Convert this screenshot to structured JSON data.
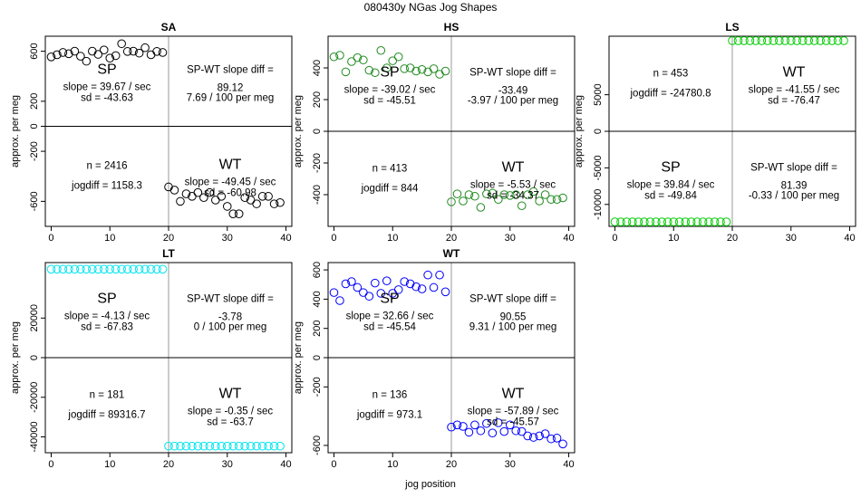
{
  "figure": {
    "title": "080430y    NGas Jog Shapes",
    "xlabel": "jog position"
  },
  "chart_data": [
    {
      "type": "scatter",
      "title": "SA",
      "ylabel": "approx. per meg",
      "xlim": [
        -1,
        41
      ],
      "ylim": [
        -800,
        720
      ],
      "xticks": [
        0,
        10,
        20,
        30,
        40
      ],
      "yticks": [
        -600,
        -200,
        0,
        200,
        600
      ],
      "color": "#000000",
      "points_sp": [
        [
          0,
          555
        ],
        [
          1,
          572
        ],
        [
          2,
          590
        ],
        [
          3,
          580
        ],
        [
          4,
          600
        ],
        [
          5,
          560
        ],
        [
          6,
          520
        ],
        [
          7,
          600
        ],
        [
          8,
          575
        ],
        [
          9,
          610
        ],
        [
          10,
          545
        ],
        [
          11,
          565
        ],
        [
          12,
          660
        ],
        [
          13,
          598
        ],
        [
          14,
          600
        ],
        [
          15,
          585
        ],
        [
          16,
          628
        ],
        [
          17,
          572
        ],
        [
          18,
          598
        ],
        [
          19,
          590
        ]
      ],
      "points_wt": [
        [
          20,
          -485
        ],
        [
          21,
          -510
        ],
        [
          22,
          -600
        ],
        [
          23,
          -540
        ],
        [
          24,
          -560
        ],
        [
          25,
          -530
        ],
        [
          26,
          -570
        ],
        [
          27,
          -530
        ],
        [
          28,
          -590
        ],
        [
          29,
          -560
        ],
        [
          30,
          -640
        ],
        [
          31,
          -700
        ],
        [
          32,
          -700
        ],
        [
          33,
          -570
        ],
        [
          34,
          -590
        ],
        [
          35,
          -620
        ],
        [
          36,
          -560
        ],
        [
          37,
          -560
        ],
        [
          38,
          -620
        ],
        [
          39,
          -610
        ]
      ],
      "sp_label": "SP",
      "sp_slope": "slope = 39.67 / sec",
      "sp_sd": "sd = -43.63",
      "diff_label": "SP-WT slope diff =",
      "diff_value": "89.12",
      "diff_per": "7.69 / 100 per meg",
      "n": "n = 2416",
      "jogdiff": "jogdiff = 1158.3",
      "wt_label": "WT",
      "wt_slope": "slope = -49.45 / sec",
      "wt_sd": "sd = -60.98"
    },
    {
      "type": "scatter",
      "title": "HS",
      "ylabel": "approx. per meg",
      "xlim": [
        -1,
        41
      ],
      "ylim": [
        -600,
        600
      ],
      "xticks": [
        0,
        10,
        20,
        30,
        40
      ],
      "yticks": [
        -400,
        -200,
        0,
        200,
        400
      ],
      "color": "#228b22",
      "points_sp": [
        [
          0,
          470
        ],
        [
          1,
          480
        ],
        [
          2,
          375
        ],
        [
          3,
          440
        ],
        [
          4,
          465
        ],
        [
          5,
          450
        ],
        [
          6,
          385
        ],
        [
          7,
          370
        ],
        [
          8,
          510
        ],
        [
          9,
          400
        ],
        [
          10,
          445
        ],
        [
          11,
          470
        ],
        [
          12,
          395
        ],
        [
          13,
          400
        ],
        [
          14,
          380
        ],
        [
          15,
          390
        ],
        [
          16,
          375
        ],
        [
          17,
          395
        ],
        [
          18,
          360
        ],
        [
          19,
          380
        ]
      ],
      "points_wt": [
        [
          20,
          -445
        ],
        [
          21,
          -395
        ],
        [
          22,
          -440
        ],
        [
          23,
          -400
        ],
        [
          24,
          -410
        ],
        [
          25,
          -480
        ],
        [
          26,
          -395
        ],
        [
          27,
          -390
        ],
        [
          28,
          -430
        ],
        [
          29,
          -400
        ],
        [
          30,
          -405
        ],
        [
          31,
          -400
        ],
        [
          32,
          -470
        ],
        [
          33,
          -400
        ],
        [
          34,
          -380
        ],
        [
          35,
          -440
        ],
        [
          36,
          -400
        ],
        [
          37,
          -430
        ],
        [
          38,
          -430
        ],
        [
          39,
          -420
        ]
      ],
      "sp_label": "SP",
      "sp_slope": "slope = -39.02 / sec",
      "sp_sd": "sd = -45.51",
      "diff_label": "SP-WT slope diff =",
      "diff_value": "-33.49",
      "diff_per": "-3.97 / 100 per meg",
      "n": "n = 413",
      "jogdiff": "jogdiff = 844",
      "wt_label": "WT",
      "wt_slope": "slope = -5.53 / sec",
      "wt_sd": "sd = -34.37"
    },
    {
      "type": "scatter",
      "title": "LS",
      "ylabel": "approx. per meg",
      "xlim": [
        -1,
        41
      ],
      "ylim": [
        -13000,
        13000
      ],
      "xticks": [
        0,
        10,
        20,
        30,
        40
      ],
      "yticks": [
        -10000,
        -5000,
        0,
        5000
      ],
      "color": "#00cc00",
      "points_sp": [
        [
          0,
          -12390
        ],
        [
          1,
          -12390
        ],
        [
          2,
          -12390
        ],
        [
          3,
          -12390
        ],
        [
          4,
          -12390
        ],
        [
          5,
          -12390
        ],
        [
          6,
          -12390
        ],
        [
          7,
          -12390
        ],
        [
          8,
          -12390
        ],
        [
          9,
          -12390
        ],
        [
          10,
          -12390
        ],
        [
          11,
          -12390
        ],
        [
          12,
          -12390
        ],
        [
          13,
          -12390
        ],
        [
          14,
          -12390
        ],
        [
          15,
          -12390
        ],
        [
          16,
          -12390
        ],
        [
          17,
          -12390
        ],
        [
          18,
          -12390
        ],
        [
          19,
          -12390
        ]
      ],
      "points_wt": [
        [
          20,
          12390
        ],
        [
          21,
          12390
        ],
        [
          22,
          12390
        ],
        [
          23,
          12390
        ],
        [
          24,
          12390
        ],
        [
          25,
          12390
        ],
        [
          26,
          12390
        ],
        [
          27,
          12390
        ],
        [
          28,
          12390
        ],
        [
          29,
          12390
        ],
        [
          30,
          12390
        ],
        [
          31,
          12390
        ],
        [
          32,
          12390
        ],
        [
          33,
          12390
        ],
        [
          34,
          12390
        ],
        [
          35,
          12390
        ],
        [
          36,
          12390
        ],
        [
          37,
          12390
        ],
        [
          38,
          12390
        ],
        [
          39,
          12390
        ]
      ],
      "sp_label": "SP",
      "sp_slope": "slope = 39.84 / sec",
      "sp_sd": "sd = -49.84",
      "diff_label": "SP-WT slope diff =",
      "diff_value": "81.39",
      "diff_per": "-0.33 / 100 per meg",
      "n": "n = 453",
      "jogdiff": "jogdiff = -24780.8",
      "wt_label": "WT",
      "wt_slope": "slope = -41.55 / sec",
      "wt_sd": "sd = -76.47",
      "layout": "flipped"
    },
    {
      "type": "scatter",
      "title": "LT",
      "ylabel": "approx. per meg",
      "xlim": [
        -1,
        41
      ],
      "ylim": [
        -48000,
        48000
      ],
      "xticks": [
        0,
        10,
        20,
        30,
        40
      ],
      "yticks": [
        -40000,
        -20000,
        0,
        20000
      ],
      "color": "#00e5ee",
      "points_sp": [
        [
          0,
          44660
        ],
        [
          1,
          44660
        ],
        [
          2,
          44660
        ],
        [
          3,
          44660
        ],
        [
          4,
          44660
        ],
        [
          5,
          44660
        ],
        [
          6,
          44660
        ],
        [
          7,
          44660
        ],
        [
          8,
          44660
        ],
        [
          9,
          44660
        ],
        [
          10,
          44660
        ],
        [
          11,
          44660
        ],
        [
          12,
          44660
        ],
        [
          13,
          44660
        ],
        [
          14,
          44660
        ],
        [
          15,
          44660
        ],
        [
          16,
          44660
        ],
        [
          17,
          44660
        ],
        [
          18,
          44660
        ],
        [
          19,
          44660
        ]
      ],
      "points_wt": [
        [
          20,
          -44660
        ],
        [
          21,
          -44660
        ],
        [
          22,
          -44660
        ],
        [
          23,
          -44660
        ],
        [
          24,
          -44660
        ],
        [
          25,
          -44660
        ],
        [
          26,
          -44660
        ],
        [
          27,
          -44660
        ],
        [
          28,
          -44660
        ],
        [
          29,
          -44660
        ],
        [
          30,
          -44660
        ],
        [
          31,
          -44660
        ],
        [
          32,
          -44660
        ],
        [
          33,
          -44660
        ],
        [
          34,
          -44660
        ],
        [
          35,
          -44660
        ],
        [
          36,
          -44660
        ],
        [
          37,
          -44660
        ],
        [
          38,
          -44660
        ],
        [
          39,
          -44660
        ]
      ],
      "sp_label": "SP",
      "sp_slope": "slope = -4.13 / sec",
      "sp_sd": "sd = -67.83",
      "diff_label": "SP-WT slope diff =",
      "diff_value": "-3.78",
      "diff_per": "0 / 100 per meg",
      "n": "n = 181",
      "jogdiff": "jogdiff = 89316.7",
      "wt_label": "WT",
      "wt_slope": "slope = -0.35 / sec",
      "wt_sd": "sd = -63.7"
    },
    {
      "type": "scatter",
      "title": "WT",
      "ylabel": "approx. per meg",
      "xlim": [
        -1,
        41
      ],
      "ylim": [
        -650,
        650
      ],
      "xticks": [
        0,
        10,
        20,
        30,
        40
      ],
      "yticks": [
        -600,
        -200,
        0,
        200,
        400,
        600
      ],
      "color": "#0000ff",
      "points_sp": [
        [
          0,
          445
        ],
        [
          1,
          390
        ],
        [
          2,
          505
        ],
        [
          3,
          520
        ],
        [
          4,
          480
        ],
        [
          5,
          445
        ],
        [
          6,
          420
        ],
        [
          7,
          510
        ],
        [
          8,
          440
        ],
        [
          9,
          525
        ],
        [
          10,
          440
        ],
        [
          11,
          465
        ],
        [
          12,
          520
        ],
        [
          13,
          505
        ],
        [
          14,
          485
        ],
        [
          15,
          470
        ],
        [
          16,
          565
        ],
        [
          17,
          480
        ],
        [
          18,
          565
        ],
        [
          19,
          450
        ]
      ],
      "points_wt": [
        [
          20,
          -475
        ],
        [
          21,
          -460
        ],
        [
          22,
          -470
        ],
        [
          23,
          -510
        ],
        [
          24,
          -460
        ],
        [
          25,
          -500
        ],
        [
          26,
          -450
        ],
        [
          27,
          -515
        ],
        [
          28,
          -445
        ],
        [
          29,
          -505
        ],
        [
          30,
          -460
        ],
        [
          31,
          -500
        ],
        [
          32,
          -505
        ],
        [
          33,
          -535
        ],
        [
          34,
          -545
        ],
        [
          35,
          -535
        ],
        [
          36,
          -520
        ],
        [
          37,
          -555
        ],
        [
          38,
          -550
        ],
        [
          39,
          -590
        ]
      ],
      "sp_label": "SP",
      "sp_slope": "slope = 32.66 / sec",
      "sp_sd": "sd = -45.54",
      "diff_label": "SP-WT slope diff =",
      "diff_value": "90.55",
      "diff_per": "9.31 / 100 per meg",
      "n": "n = 136",
      "jogdiff": "jogdiff = 973.1",
      "wt_label": "WT",
      "wt_slope": "slope = -57.89 / sec",
      "wt_sd": "sd = -45.57"
    }
  ]
}
